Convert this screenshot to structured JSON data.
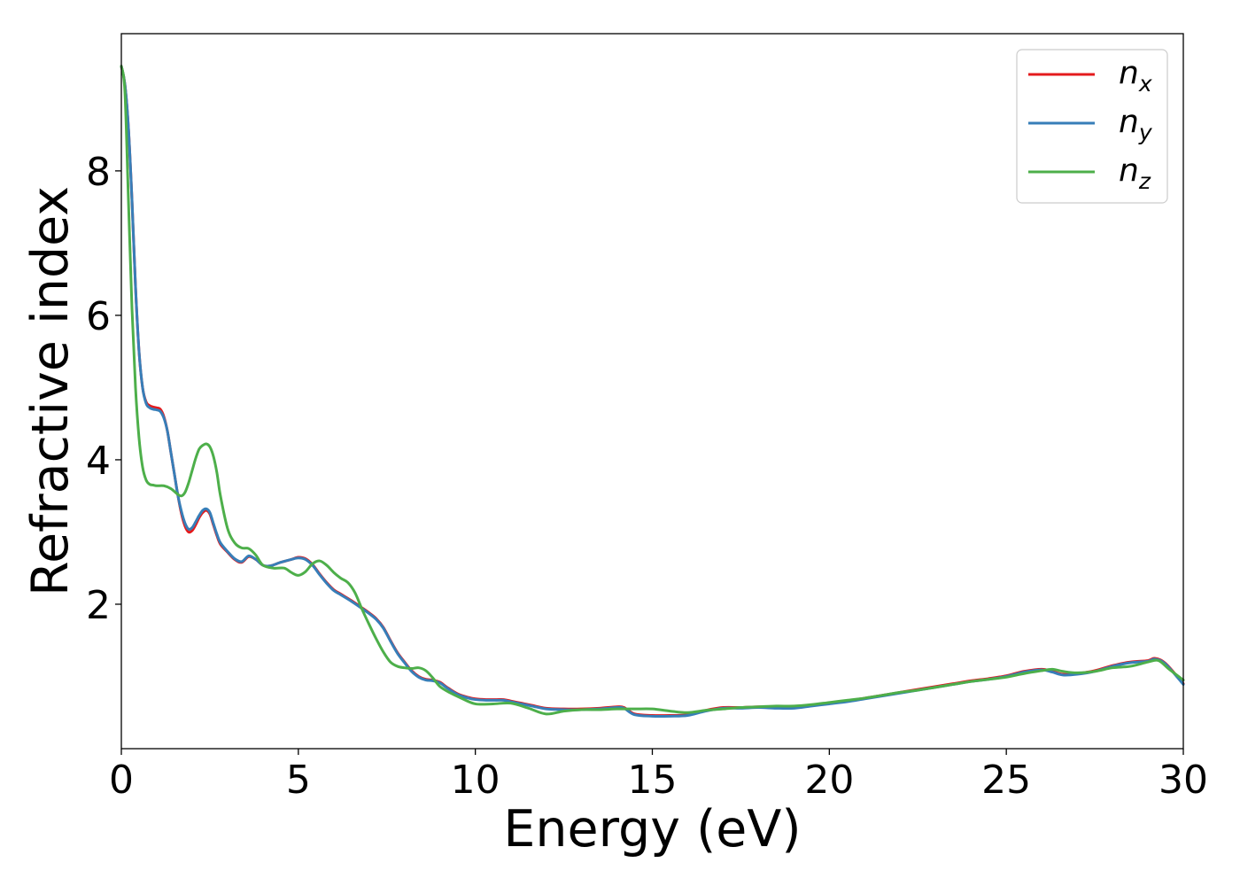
{
  "chart_data": {
    "type": "line",
    "title": "",
    "xlabel": "Energy (eV)",
    "ylabel": "Refractive index",
    "xlim": [
      0,
      30
    ],
    "ylim": [
      0,
      9.9
    ],
    "xticks": [
      0,
      5,
      10,
      15,
      20,
      25,
      30
    ],
    "xtick_labels": [
      "0",
      "5",
      "10",
      "15",
      "20",
      "25",
      "30"
    ],
    "yticks": [
      2,
      4,
      6,
      8
    ],
    "ytick_labels": [
      "2",
      "4",
      "6",
      "8"
    ],
    "grid": false,
    "legend_position": "top-right",
    "series": [
      {
        "name": "n_x",
        "label_main": "n",
        "label_sub": "x",
        "color": "#e41a1c",
        "x": [
          0,
          0.1,
          0.2,
          0.3,
          0.4,
          0.5,
          0.6,
          0.7,
          0.8,
          0.9,
          1.0,
          1.1,
          1.2,
          1.3,
          1.4,
          1.5,
          1.6,
          1.7,
          1.8,
          1.9,
          2.0,
          2.1,
          2.2,
          2.3,
          2.4,
          2.5,
          2.6,
          2.7,
          2.8,
          3.0,
          3.2,
          3.4,
          3.6,
          3.8,
          4.0,
          4.2,
          4.5,
          4.8,
          5.0,
          5.2,
          5.4,
          5.6,
          5.8,
          6.0,
          6.2,
          6.5,
          6.8,
          7.0,
          7.2,
          7.4,
          7.6,
          7.8,
          8.0,
          8.2,
          8.4,
          8.6,
          8.8,
          9.0,
          9.2,
          9.5,
          9.8,
          10.0,
          10.3,
          10.6,
          10.8,
          11.0,
          11.3,
          11.6,
          12.0,
          12.5,
          13.0,
          13.5,
          14.0,
          14.2,
          14.5,
          15.0,
          15.5,
          16.0,
          16.5,
          17.0,
          17.5,
          18.0,
          18.5,
          19.0,
          19.5,
          20.0,
          20.5,
          21.0,
          21.5,
          22.0,
          22.5,
          23.0,
          23.5,
          24.0,
          24.5,
          25.0,
          25.5,
          26.0,
          26.3,
          26.6,
          27.0,
          27.5,
          28.0,
          28.5,
          29.0,
          29.2,
          29.5,
          30.0
        ],
        "y": [
          9.45,
          9.2,
          8.6,
          7.6,
          6.4,
          5.5,
          5.0,
          4.8,
          4.75,
          4.73,
          4.72,
          4.7,
          4.6,
          4.4,
          4.1,
          3.8,
          3.5,
          3.25,
          3.08,
          3.0,
          3.02,
          3.1,
          3.2,
          3.27,
          3.3,
          3.25,
          3.1,
          2.95,
          2.83,
          2.72,
          2.62,
          2.58,
          2.66,
          2.62,
          2.54,
          2.53,
          2.58,
          2.62,
          2.65,
          2.63,
          2.55,
          2.42,
          2.3,
          2.2,
          2.14,
          2.05,
          1.95,
          1.88,
          1.8,
          1.68,
          1.5,
          1.33,
          1.2,
          1.08,
          1.0,
          0.96,
          0.95,
          0.92,
          0.85,
          0.76,
          0.71,
          0.69,
          0.68,
          0.68,
          0.68,
          0.66,
          0.63,
          0.6,
          0.56,
          0.55,
          0.55,
          0.56,
          0.58,
          0.57,
          0.48,
          0.46,
          0.46,
          0.47,
          0.53,
          0.57,
          0.57,
          0.58,
          0.57,
          0.57,
          0.6,
          0.63,
          0.66,
          0.7,
          0.74,
          0.78,
          0.82,
          0.86,
          0.9,
          0.94,
          0.97,
          1.01,
          1.07,
          1.1,
          1.07,
          1.03,
          1.04,
          1.08,
          1.15,
          1.2,
          1.22,
          1.25,
          1.18,
          0.9
        ]
      },
      {
        "name": "n_y",
        "label_main": "n",
        "label_sub": "y",
        "color": "#377eb8",
        "x": [
          0,
          0.1,
          0.2,
          0.3,
          0.4,
          0.5,
          0.6,
          0.7,
          0.8,
          0.9,
          1.0,
          1.1,
          1.2,
          1.3,
          1.4,
          1.5,
          1.6,
          1.7,
          1.8,
          1.9,
          2.0,
          2.1,
          2.2,
          2.3,
          2.4,
          2.5,
          2.6,
          2.7,
          2.8,
          3.0,
          3.2,
          3.4,
          3.6,
          3.8,
          4.0,
          4.2,
          4.5,
          4.8,
          5.0,
          5.2,
          5.4,
          5.6,
          5.8,
          6.0,
          6.2,
          6.5,
          6.8,
          7.0,
          7.2,
          7.4,
          7.6,
          7.8,
          8.0,
          8.2,
          8.4,
          8.6,
          8.8,
          9.0,
          9.2,
          9.5,
          9.8,
          10.0,
          10.3,
          10.6,
          10.8,
          11.0,
          11.3,
          11.6,
          12.0,
          12.5,
          13.0,
          13.5,
          14.0,
          14.2,
          14.5,
          15.0,
          15.5,
          16.0,
          16.5,
          17.0,
          17.5,
          18.0,
          18.5,
          19.0,
          19.5,
          20.0,
          20.5,
          21.0,
          21.5,
          22.0,
          22.5,
          23.0,
          23.5,
          24.0,
          24.5,
          25.0,
          25.5,
          26.0,
          26.3,
          26.6,
          27.0,
          27.5,
          28.0,
          28.5,
          29.0,
          29.2,
          29.5,
          30.0
        ],
        "y": [
          9.45,
          9.2,
          8.6,
          7.6,
          6.4,
          5.5,
          5.0,
          4.78,
          4.72,
          4.7,
          4.69,
          4.67,
          4.58,
          4.4,
          4.1,
          3.8,
          3.5,
          3.28,
          3.12,
          3.04,
          3.06,
          3.14,
          3.23,
          3.3,
          3.32,
          3.27,
          3.12,
          2.97,
          2.85,
          2.73,
          2.63,
          2.59,
          2.67,
          2.62,
          2.54,
          2.53,
          2.58,
          2.62,
          2.64,
          2.62,
          2.54,
          2.41,
          2.29,
          2.19,
          2.13,
          2.04,
          1.94,
          1.87,
          1.79,
          1.67,
          1.49,
          1.32,
          1.19,
          1.07,
          0.99,
          0.95,
          0.94,
          0.91,
          0.84,
          0.75,
          0.7,
          0.68,
          0.67,
          0.67,
          0.67,
          0.65,
          0.62,
          0.59,
          0.55,
          0.54,
          0.54,
          0.55,
          0.57,
          0.56,
          0.47,
          0.45,
          0.45,
          0.46,
          0.52,
          0.56,
          0.56,
          0.57,
          0.56,
          0.56,
          0.59,
          0.62,
          0.65,
          0.69,
          0.73,
          0.77,
          0.81,
          0.85,
          0.89,
          0.93,
          0.96,
          1.0,
          1.06,
          1.09,
          1.06,
          1.02,
          1.03,
          1.07,
          1.14,
          1.19,
          1.21,
          1.24,
          1.17,
          0.89
        ]
      },
      {
        "name": "n_z",
        "label_main": "n",
        "label_sub": "z",
        "color": "#4daf4a",
        "x": [
          0,
          0.1,
          0.2,
          0.3,
          0.4,
          0.5,
          0.6,
          0.7,
          0.8,
          0.9,
          1.0,
          1.2,
          1.4,
          1.6,
          1.7,
          1.8,
          1.9,
          2.0,
          2.1,
          2.2,
          2.3,
          2.4,
          2.5,
          2.6,
          2.7,
          2.8,
          3.0,
          3.2,
          3.4,
          3.6,
          3.8,
          4.0,
          4.3,
          4.6,
          4.8,
          5.0,
          5.2,
          5.4,
          5.6,
          5.8,
          6.0,
          6.2,
          6.4,
          6.6,
          6.8,
          7.0,
          7.2,
          7.4,
          7.6,
          7.8,
          8.0,
          8.2,
          8.4,
          8.6,
          8.8,
          9.0,
          9.3,
          9.6,
          10.0,
          10.5,
          11.0,
          11.5,
          12.0,
          12.5,
          13.0,
          13.5,
          14.0,
          14.5,
          15.0,
          15.5,
          16.0,
          16.5,
          17.0,
          17.5,
          18.0,
          18.5,
          19.0,
          19.5,
          20.0,
          20.5,
          21.0,
          21.5,
          22.0,
          22.5,
          23.0,
          23.5,
          24.0,
          24.5,
          25.0,
          25.5,
          26.0,
          26.3,
          26.6,
          27.0,
          27.5,
          28.0,
          28.5,
          29.0,
          29.3,
          29.6,
          30.0
        ],
        "y": [
          9.45,
          9.1,
          7.6,
          6.1,
          5.0,
          4.3,
          3.9,
          3.72,
          3.66,
          3.65,
          3.64,
          3.64,
          3.6,
          3.52,
          3.5,
          3.55,
          3.68,
          3.85,
          4.02,
          4.15,
          4.2,
          4.22,
          4.18,
          4.05,
          3.82,
          3.5,
          3.05,
          2.85,
          2.78,
          2.77,
          2.68,
          2.54,
          2.5,
          2.5,
          2.44,
          2.4,
          2.45,
          2.56,
          2.6,
          2.54,
          2.44,
          2.36,
          2.3,
          2.16,
          1.93,
          1.72,
          1.52,
          1.34,
          1.2,
          1.14,
          1.12,
          1.11,
          1.12,
          1.08,
          0.98,
          0.86,
          0.77,
          0.7,
          0.62,
          0.62,
          0.63,
          0.56,
          0.48,
          0.52,
          0.54,
          0.54,
          0.55,
          0.55,
          0.55,
          0.52,
          0.5,
          0.53,
          0.55,
          0.57,
          0.58,
          0.59,
          0.59,
          0.61,
          0.64,
          0.67,
          0.7,
          0.74,
          0.78,
          0.81,
          0.85,
          0.89,
          0.93,
          0.96,
          0.99,
          1.04,
          1.08,
          1.1,
          1.07,
          1.05,
          1.07,
          1.12,
          1.14,
          1.2,
          1.22,
          1.1,
          0.95
        ]
      }
    ]
  }
}
